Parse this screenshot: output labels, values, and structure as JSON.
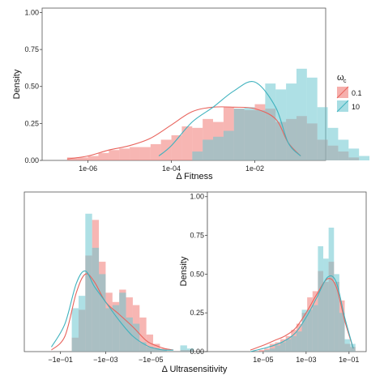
{
  "colors": {
    "red": "#F07A74",
    "teal": "#6CC7D0",
    "redLine": "#E8635C",
    "tealLine": "#3FB2BE",
    "overlap": "#9E9E9E"
  },
  "legend": {
    "title_main": "ω",
    "title_sub": "c",
    "entries": [
      "0.1",
      "10"
    ]
  },
  "chart_data": [
    {
      "type": "bar",
      "name": "fitness",
      "xlabel": "Δ Fitness",
      "ylabel": "Density",
      "xscale": "log10",
      "xlim": [
        -7.1,
        -0.3
      ],
      "ylim": [
        0,
        1.03
      ],
      "xticks": [
        -6,
        -4,
        -2
      ],
      "xticklabels": [
        "1e-06",
        "1e-04",
        "1e-02"
      ],
      "yticks": [
        0,
        0.25,
        0.5,
        0.75,
        1
      ],
      "yticklabels": [
        "0.00",
        "0.25",
        "0.50",
        "0.75",
        "1.00"
      ],
      "bin_start": -6.5,
      "bin_width": 0.25,
      "series": [
        {
          "name": "0.1",
          "values": [
            0.02,
            0.02,
            0.03,
            0.05,
            0.07,
            0.08,
            0.09,
            0.09,
            0.11,
            0.14,
            0.17,
            0.23,
            0.22,
            0.28,
            0.26,
            0.36,
            0.35,
            0.34,
            0.38,
            0.35,
            0.26,
            0.28,
            0.3,
            0.25,
            0.14,
            0.1,
            0.06,
            0.02,
            0
          ]
        },
        {
          "name": "10",
          "values": [
            0,
            0,
            0,
            0,
            0,
            0,
            0,
            0,
            0,
            0,
            0,
            0,
            0.06,
            0.14,
            0.16,
            0.2,
            0.35,
            0.36,
            0.34,
            0.52,
            0.48,
            0.52,
            0.62,
            0.56,
            0.36,
            0.22,
            0.14,
            0.08,
            0.03
          ]
        }
      ],
      "density": [
        {
          "name": "0.1",
          "x": [
            -6.5,
            -6,
            -5.5,
            -5,
            -4.5,
            -4,
            -3.5,
            -3,
            -2.5,
            -2,
            -1.5,
            -1.2,
            -0.9
          ],
          "y": [
            0.01,
            0.03,
            0.07,
            0.1,
            0.15,
            0.24,
            0.33,
            0.36,
            0.36,
            0.35,
            0.28,
            0.12,
            0.03
          ]
        },
        {
          "name": "10",
          "x": [
            -4.3,
            -4,
            -3.5,
            -3,
            -2.5,
            -2,
            -1.5,
            -1.2,
            -0.9
          ],
          "y": [
            0.03,
            0.1,
            0.26,
            0.36,
            0.47,
            0.53,
            0.36,
            0.12,
            0.03
          ]
        }
      ]
    },
    {
      "type": "bar",
      "name": "ultrasensitivity-negative",
      "xlabel": "Δ Ultrasensitivity",
      "ylabel": "",
      "xlim": [
        -0.6,
        7.5
      ],
      "ylim": [
        0,
        1.03
      ],
      "xticks": [
        1,
        3,
        5
      ],
      "xticklabels": [
        "−1e−01",
        "−1e−03",
        "−1e−05"
      ],
      "bin_start": 1.5,
      "bin_width": 0.3,
      "series": [
        {
          "name": "0.1",
          "values": [
            0.09,
            0.27,
            0.62,
            0.85,
            0.58,
            0.38,
            0.32,
            0.4,
            0.35,
            0.3,
            0.22,
            0.11,
            0.05,
            0.02,
            0,
            0,
            0.01,
            0.01
          ]
        },
        {
          "name": "10",
          "values": [
            0.28,
            0.36,
            0.89,
            0.67,
            0.5,
            0.28,
            0.3,
            0.38,
            0.22,
            0.18,
            0.06,
            0.03,
            0.02,
            0.01,
            0,
            0,
            0.04,
            0.02
          ]
        }
      ],
      "density": [
        {
          "name": "0.1",
          "x": [
            0.6,
            1.2,
            1.7,
            2.1,
            2.5,
            3,
            3.6,
            4.2,
            4.8,
            5.2,
            5.6,
            6
          ],
          "y": [
            0.01,
            0.1,
            0.38,
            0.5,
            0.45,
            0.32,
            0.24,
            0.16,
            0.07,
            0.04,
            0.02,
            0.01
          ]
        },
        {
          "name": "10",
          "x": [
            0.6,
            1.2,
            1.7,
            2.1,
            2.5,
            3,
            3.6,
            4.2,
            4.8,
            5.2,
            5.6,
            6
          ],
          "y": [
            0.03,
            0.18,
            0.44,
            0.52,
            0.42,
            0.32,
            0.2,
            0.1,
            0.04,
            0.02,
            0.01,
            0.01
          ]
        }
      ]
    },
    {
      "type": "bar",
      "name": "ultrasensitivity-positive",
      "xlabel": "",
      "ylabel": "Density",
      "xscale": "log10",
      "xlim": [
        -7.6,
        -0.2
      ],
      "ylim": [
        0,
        1.03
      ],
      "xticks": [
        -5,
        -3,
        -1
      ],
      "xticklabels": [
        "1e−05",
        "1e−03",
        "1e−01"
      ],
      "yticks": [
        0,
        0.25,
        0.5,
        0.75,
        1
      ],
      "yticklabels": [
        "0.00",
        "0.25",
        "0.50",
        "0.75",
        "1.00"
      ],
      "bin_start": -5.2,
      "bin_width": 0.25,
      "series": [
        {
          "name": "0.1",
          "values": [
            0.01,
            0.02,
            0.05,
            0.06,
            0.08,
            0.1,
            0.14,
            0.18,
            0.25,
            0.35,
            0.39,
            0.52,
            0.45,
            0.58,
            0.45,
            0.33,
            0.05,
            0.03
          ]
        },
        {
          "name": "10",
          "values": [
            0,
            0.01,
            0.02,
            0.04,
            0.06,
            0.08,
            0.1,
            0.13,
            0.27,
            0.27,
            0.3,
            0.68,
            0.6,
            0.8,
            0.5,
            0.25,
            0.08,
            0.05
          ]
        }
      ],
      "density": [
        {
          "name": "0.1",
          "x": [
            -5.6,
            -5,
            -4.5,
            -4,
            -3.5,
            -3,
            -2.5,
            -2,
            -1.6,
            -1.2,
            -0.8
          ],
          "y": [
            0.01,
            0.04,
            0.07,
            0.1,
            0.15,
            0.25,
            0.37,
            0.47,
            0.42,
            0.2,
            0.02
          ]
        },
        {
          "name": "10",
          "x": [
            -5.6,
            -5,
            -4.5,
            -4,
            -3.5,
            -3,
            -2.5,
            -2,
            -1.6,
            -1.2,
            -0.8
          ],
          "y": [
            0,
            0.02,
            0.04,
            0.07,
            0.12,
            0.22,
            0.35,
            0.48,
            0.45,
            0.22,
            0.02
          ]
        }
      ]
    }
  ]
}
